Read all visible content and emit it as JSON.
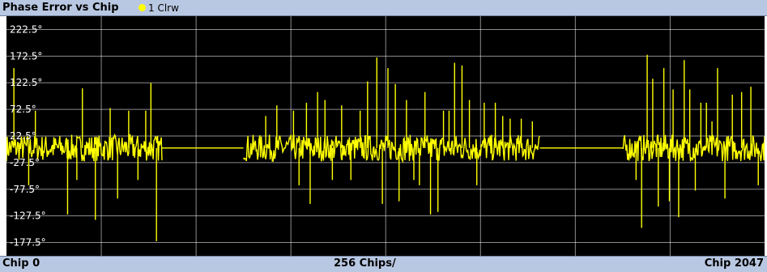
{
  "header": {
    "title": "Phase Error vs Chip",
    "trace_label": "1 Clrw"
  },
  "footer": {
    "left": "Chip 0",
    "center": "256 Chips/",
    "right": "Chip 2047"
  },
  "colors": {
    "bar": "#b9c8e2",
    "trace": "#ffff00",
    "grid": "#ffffff",
    "background": "#000000"
  },
  "chart_data": {
    "type": "line",
    "title": "Phase Error vs Chip",
    "xlabel": "",
    "ylabel": "",
    "xlim": [
      0,
      2047
    ],
    "ylim": [
      -202.5,
      247.5
    ],
    "x_major_step": 256,
    "y_tick_labels": [
      "222.5°",
      "172.5°",
      "122.5°",
      "72.5°",
      "22.5°",
      "-27.5°",
      "-77.5°",
      "-127.5°",
      "-177.5°"
    ],
    "y_tick_values": [
      222.5,
      172.5,
      122.5,
      72.5,
      22.5,
      -27.5,
      -77.5,
      -127.5,
      -177.5
    ],
    "grid": true,
    "series": [
      {
        "name": "1 Clrw",
        "color": "#ffff00",
        "segments": [
          {
            "x_start": 0,
            "x_end": 420,
            "active": true
          },
          {
            "x_start": 420,
            "x_end": 640,
            "active": false
          },
          {
            "x_start": 640,
            "x_end": 1440,
            "active": true
          },
          {
            "x_start": 1440,
            "x_end": 1665,
            "active": false
          },
          {
            "x_start": 1665,
            "x_end": 2047,
            "active": true
          }
        ],
        "flat_value": 0.0,
        "noise_band": [
          -25,
          25
        ],
        "spikes": [
          {
            "x": 20,
            "y": 150
          },
          {
            "x": 60,
            "y": -70
          },
          {
            "x": 78,
            "y": 70
          },
          {
            "x": 165,
            "y": -125
          },
          {
            "x": 190,
            "y": -60
          },
          {
            "x": 205,
            "y": 112
          },
          {
            "x": 240,
            "y": -135
          },
          {
            "x": 280,
            "y": 75
          },
          {
            "x": 300,
            "y": -95
          },
          {
            "x": 330,
            "y": 70
          },
          {
            "x": 355,
            "y": -60
          },
          {
            "x": 376,
            "y": 70
          },
          {
            "x": 390,
            "y": 122
          },
          {
            "x": 405,
            "y": -175
          },
          {
            "x": 700,
            "y": 60
          },
          {
            "x": 730,
            "y": 80
          },
          {
            "x": 775,
            "y": 70
          },
          {
            "x": 790,
            "y": -70
          },
          {
            "x": 810,
            "y": 85
          },
          {
            "x": 820,
            "y": -105
          },
          {
            "x": 840,
            "y": 105
          },
          {
            "x": 860,
            "y": 90
          },
          {
            "x": 880,
            "y": -60
          },
          {
            "x": 905,
            "y": 80
          },
          {
            "x": 930,
            "y": -60
          },
          {
            "x": 955,
            "y": 70
          },
          {
            "x": 975,
            "y": 125
          },
          {
            "x": 1000,
            "y": 170
          },
          {
            "x": 1015,
            "y": -105
          },
          {
            "x": 1030,
            "y": 150
          },
          {
            "x": 1050,
            "y": 120
          },
          {
            "x": 1060,
            "y": -100
          },
          {
            "x": 1080,
            "y": 90
          },
          {
            "x": 1100,
            "y": -60
          },
          {
            "x": 1115,
            "y": -70
          },
          {
            "x": 1130,
            "y": 105
          },
          {
            "x": 1145,
            "y": -125
          },
          {
            "x": 1165,
            "y": -120
          },
          {
            "x": 1180,
            "y": 70
          },
          {
            "x": 1195,
            "y": 70
          },
          {
            "x": 1210,
            "y": 160
          },
          {
            "x": 1230,
            "y": 155
          },
          {
            "x": 1250,
            "y": 90
          },
          {
            "x": 1270,
            "y": -70
          },
          {
            "x": 1290,
            "y": 85
          },
          {
            "x": 1320,
            "y": 85
          },
          {
            "x": 1340,
            "y": 60
          },
          {
            "x": 1360,
            "y": 55
          },
          {
            "x": 1390,
            "y": 55
          },
          {
            "x": 1420,
            "y": 50
          },
          {
            "x": 1700,
            "y": -60
          },
          {
            "x": 1715,
            "y": -150
          },
          {
            "x": 1730,
            "y": 175
          },
          {
            "x": 1745,
            "y": 130
          },
          {
            "x": 1760,
            "y": -110
          },
          {
            "x": 1775,
            "y": 150
          },
          {
            "x": 1790,
            "y": -100
          },
          {
            "x": 1800,
            "y": 110
          },
          {
            "x": 1815,
            "y": -130
          },
          {
            "x": 1830,
            "y": 165
          },
          {
            "x": 1845,
            "y": 110
          },
          {
            "x": 1860,
            "y": -80
          },
          {
            "x": 1875,
            "y": 85
          },
          {
            "x": 1890,
            "y": 85
          },
          {
            "x": 1905,
            "y": 50
          },
          {
            "x": 1920,
            "y": 150
          },
          {
            "x": 1940,
            "y": -95
          },
          {
            "x": 1960,
            "y": 100
          },
          {
            "x": 1985,
            "y": 105
          },
          {
            "x": 2010,
            "y": 115
          },
          {
            "x": 2030,
            "y": -70
          }
        ]
      }
    ]
  }
}
